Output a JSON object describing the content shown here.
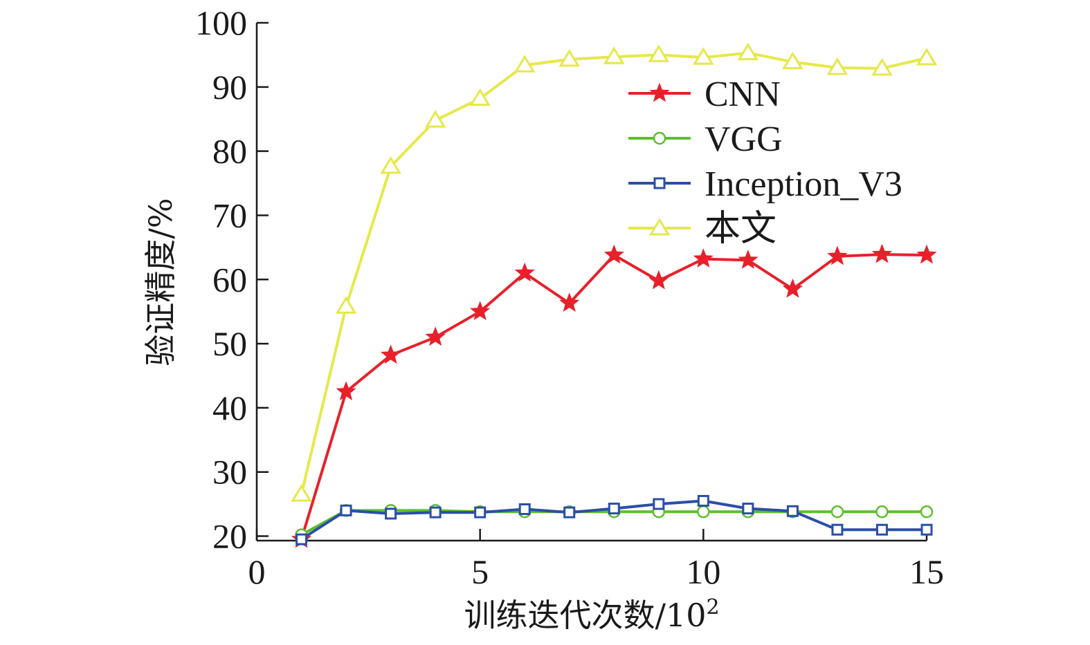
{
  "chart_data": {
    "type": "line",
    "title": "",
    "xlabel": "训练迭代次数/10",
    "xlabel_sup": "2",
    "ylabel": "验证精度/%",
    "xlim": [
      0,
      15
    ],
    "ylim": [
      19.3,
      100
    ],
    "xticks": [
      0,
      5,
      10,
      15
    ],
    "yticks": [
      20,
      30,
      40,
      50,
      60,
      70,
      80,
      90,
      100
    ],
    "legend_position": "top-right",
    "grid": false,
    "x": [
      1,
      2,
      3,
      4,
      5,
      6,
      7,
      8,
      9,
      10,
      11,
      12,
      13,
      14,
      15
    ],
    "series": [
      {
        "name": "CNN",
        "color": "#e8202a",
        "marker": "star",
        "values": [
          19.5,
          42.5,
          48.2,
          51.0,
          55.0,
          61.0,
          56.3,
          63.8,
          59.8,
          63.2,
          63.0,
          58.5,
          63.6,
          63.9,
          63.8
        ]
      },
      {
        "name": "VGG",
        "color": "#5cbf2a",
        "marker": "circle",
        "values": [
          20.2,
          24.0,
          24.0,
          24.0,
          23.8,
          23.8,
          23.8,
          23.8,
          23.8,
          23.8,
          23.8,
          23.8,
          23.8,
          23.8,
          23.8
        ]
      },
      {
        "name": "Inception_V3",
        "color": "#2b4ea8",
        "marker": "square",
        "values": [
          19.5,
          24.0,
          23.5,
          23.7,
          23.7,
          24.2,
          23.7,
          24.3,
          25.0,
          25.5,
          24.3,
          23.9,
          21.0,
          21.0,
          21.0
        ]
      },
      {
        "name": "本文",
        "color": "#e6e84a",
        "marker": "triangle",
        "values": [
          26.5,
          55.8,
          77.6,
          84.8,
          88.2,
          93.4,
          94.3,
          94.7,
          95.0,
          94.6,
          95.3,
          93.9,
          93.0,
          92.9,
          94.5
        ]
      }
    ]
  }
}
